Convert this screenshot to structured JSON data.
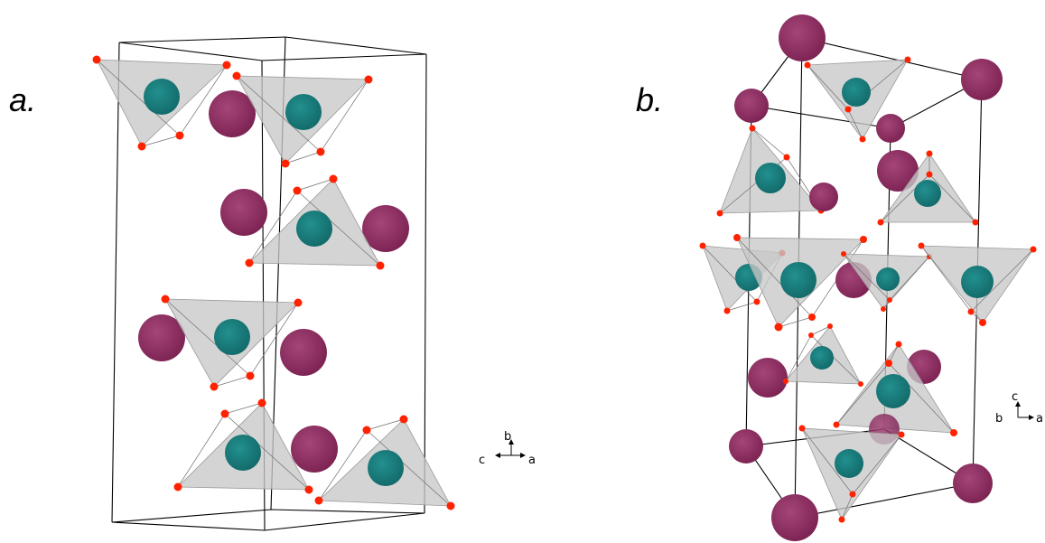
{
  "panels": [
    {
      "id": "a",
      "label": "a."
    },
    {
      "id": "b",
      "label": "b."
    }
  ],
  "axes": {
    "panel_a": {
      "up": "b",
      "left": "c",
      "right": "a"
    },
    "panel_b": {
      "up": "c",
      "left": "b",
      "right": "a"
    }
  },
  "colors": {
    "large_atom": "#8e2c62",
    "tetra_center_atom": "#1b7b7b",
    "corner_atom": "#ff2200",
    "tetrahedron_face": "#c8c8c8",
    "cell_edge": "#000000"
  }
}
